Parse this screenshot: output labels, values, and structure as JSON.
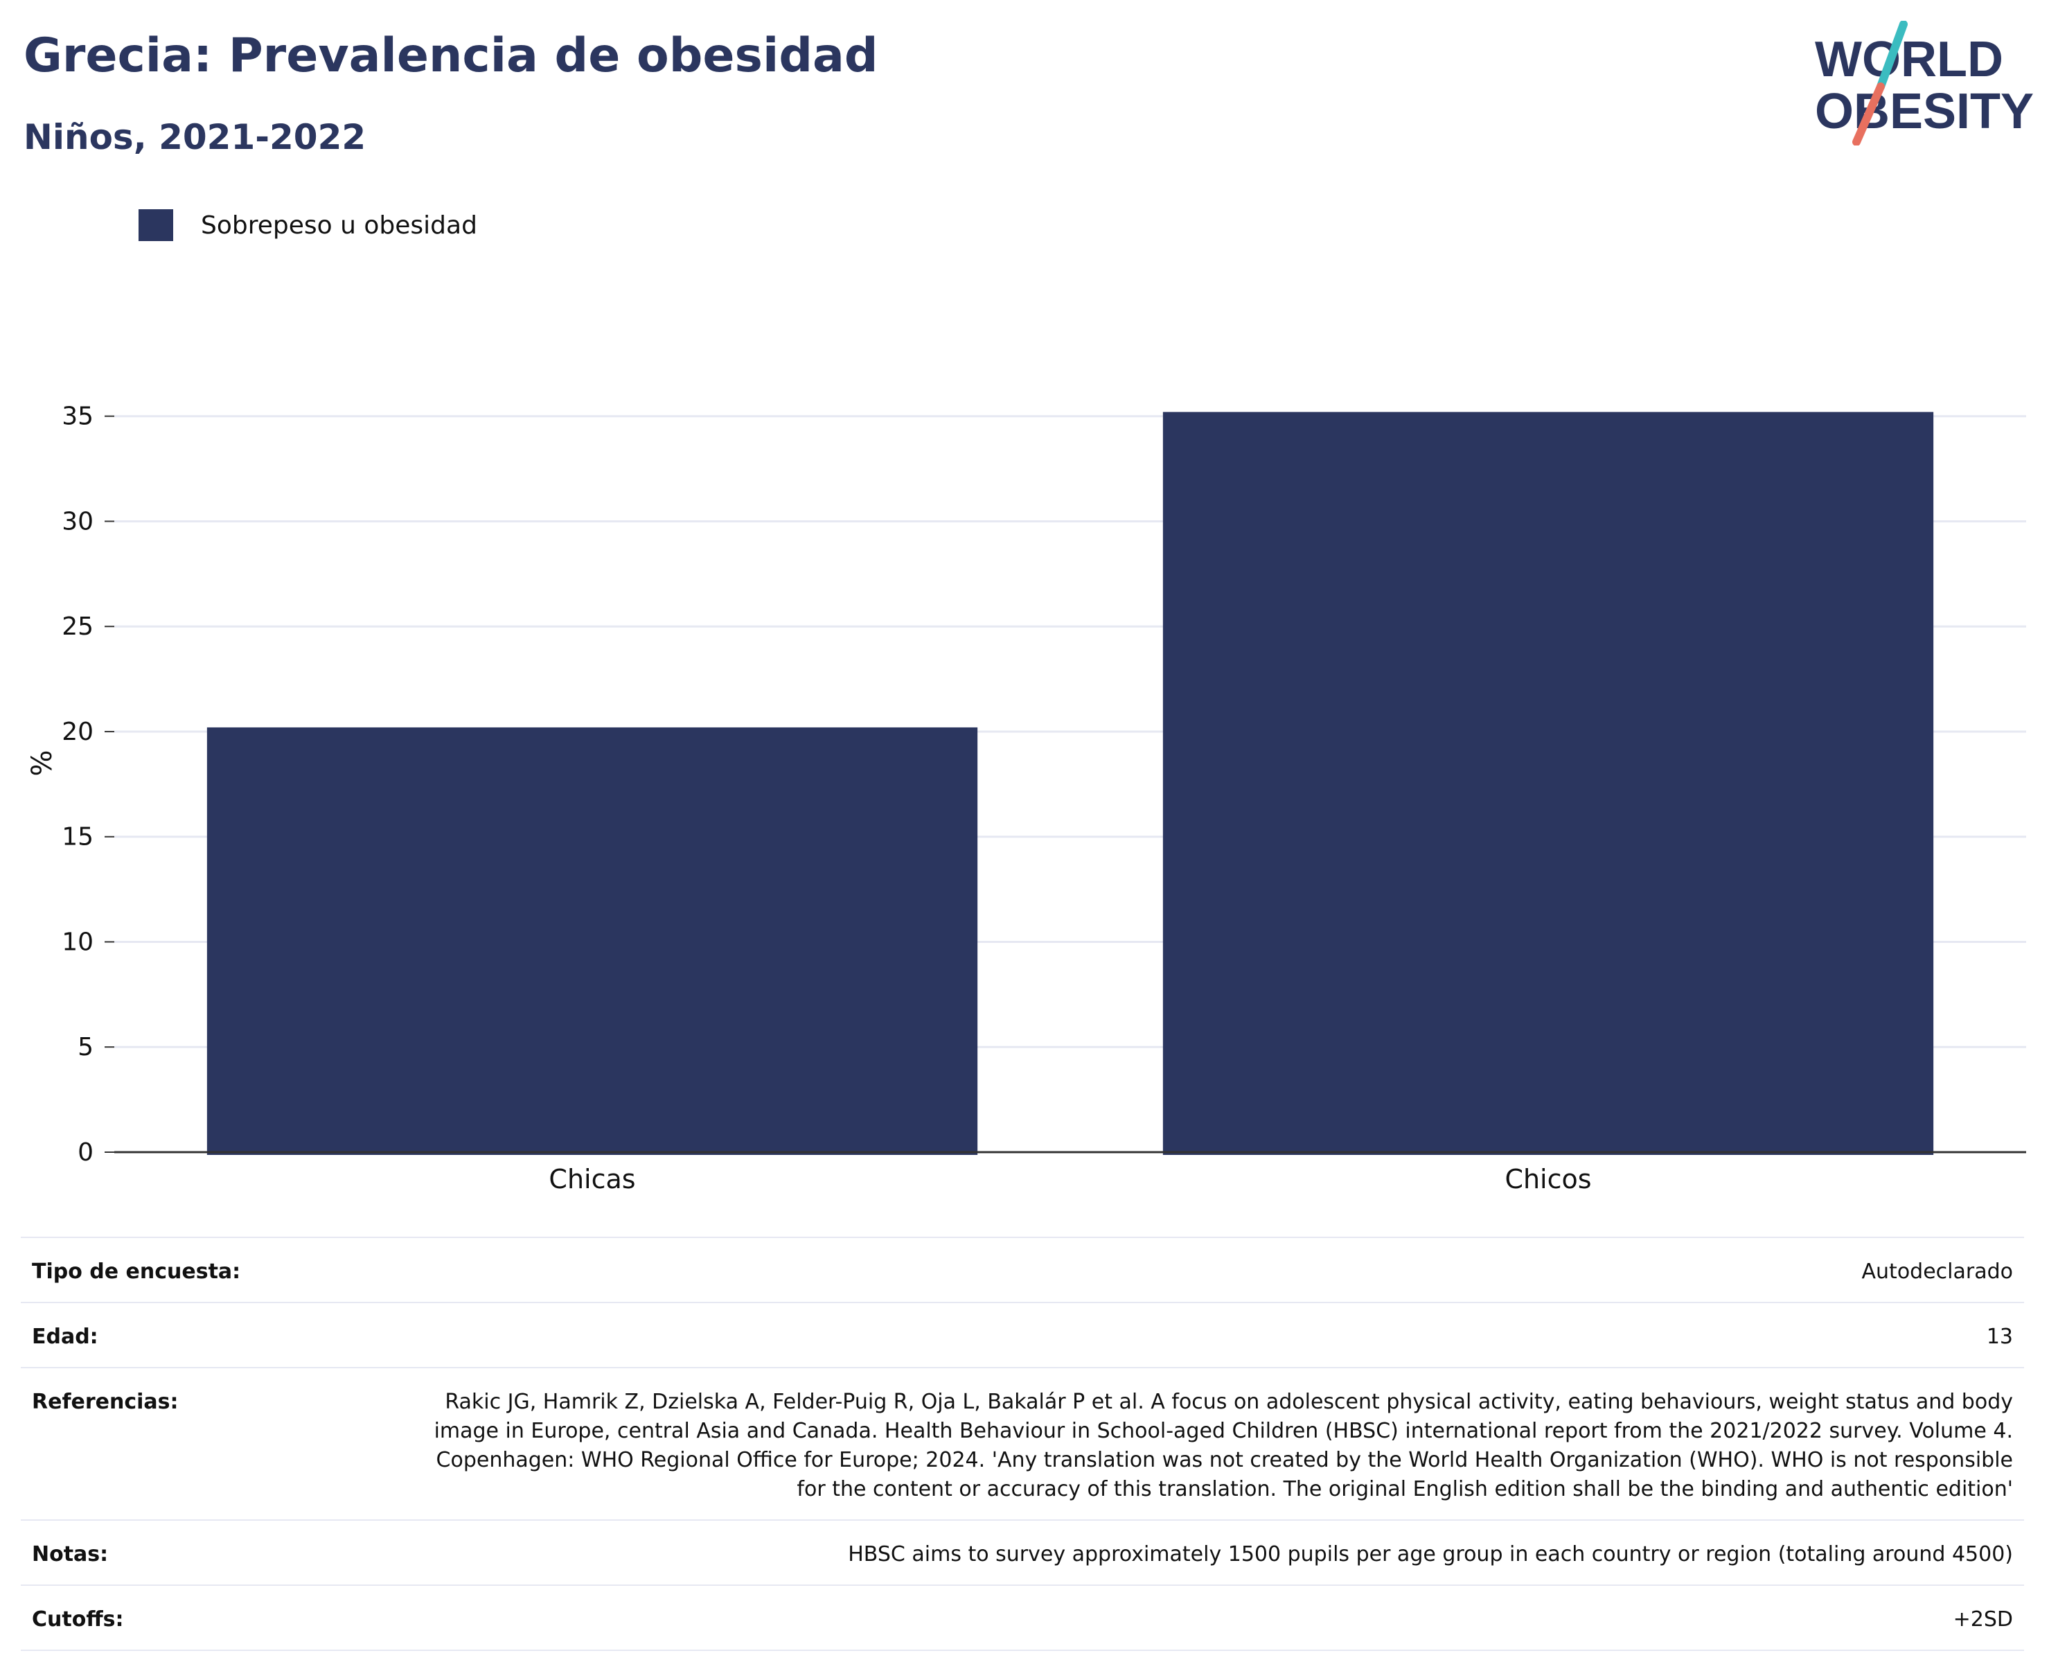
{
  "header": {
    "title": "Grecia: Prevalencia de obesidad",
    "subtitle": "Niños, 2021-2022"
  },
  "logo": {
    "line1": "WORLD",
    "line2": "OBESITY",
    "colors": {
      "text": "#2b365f",
      "slash_top": "#3bbcc0",
      "slash_bottom": "#e8705f"
    }
  },
  "legend": {
    "label": "Sobrepeso u obesidad",
    "color": "#2b365f"
  },
  "chart_data": {
    "type": "bar",
    "categories": [
      "Chicas",
      "Chicos"
    ],
    "series": [
      {
        "name": "Sobrepeso u obesidad",
        "values": [
          20.2,
          35.2
        ],
        "color": "#2b365f"
      }
    ],
    "ylabel": "%",
    "ylim": [
      0,
      37
    ],
    "yticks": [
      0,
      5,
      10,
      15,
      20,
      25,
      30,
      35
    ],
    "grid": true,
    "legend_position": "top-left"
  },
  "meta": {
    "rows": [
      {
        "key": "Tipo de encuesta:",
        "value": "Autodeclarado"
      },
      {
        "key": "Edad:",
        "value": "13"
      },
      {
        "key": "Referencias:",
        "value": "Rakic JG, Hamrik Z, Dzielska A, Felder-Puig R, Oja L, Bakalár P et al. A focus on adolescent physical activity, eating behaviours, weight status and body image in Europe, central Asia and Canada. Health Behaviour in School-aged Children (HBSC) international report from the 2021/2022 survey. Volume 4. Copenhagen: WHO Regional Office for Europe; 2024. 'Any translation was not created by the World Health Organization (WHO). WHO is not responsible for the content or accuracy of this translation. The original English edition shall be the binding and authentic edition'"
      },
      {
        "key": "Notas:",
        "value": "HBSC aims to survey approximately 1500 pupils per age group in each country or region (totaling around 4500)"
      },
      {
        "key": "Cutoffs:",
        "value": "+2SD"
      }
    ]
  }
}
